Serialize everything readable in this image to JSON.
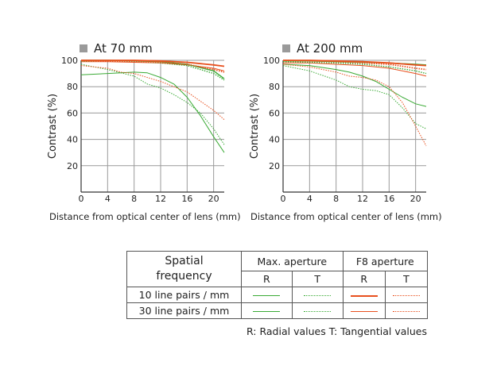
{
  "colors": {
    "max_aperture": "#3aaa35",
    "f8_aperture": "#e8501e",
    "grid": "#9a9a9a",
    "axis": "#333333"
  },
  "chart_data": [
    {
      "type": "line",
      "title": "At 70 mm",
      "xlabel": "Distance from optical center of lens (mm)",
      "ylabel": "Contrast (%)",
      "xlim": [
        0,
        21.6
      ],
      "ylim": [
        0,
        100
      ],
      "xticks": [
        0,
        4,
        8,
        12,
        16,
        20
      ],
      "yticks": [
        20,
        40,
        60,
        80,
        100
      ],
      "xtick_labels": [
        "0",
        "4",
        "8",
        "12",
        "16",
        "20"
      ],
      "ytick_labels": [
        "20",
        "40",
        "60",
        "80",
        "100"
      ],
      "grid": true,
      "series": [
        {
          "aperture": "F8",
          "frequency": "10 line pairs / mm",
          "component": "R",
          "x": [
            0,
            4,
            8,
            12,
            16,
            20,
            21.6
          ],
          "y": [
            100,
            100,
            100,
            99.5,
            98.5,
            96.5,
            95.5
          ]
        },
        {
          "aperture": "F8",
          "frequency": "10 line pairs / mm",
          "component": "T",
          "x": [
            0,
            4,
            8,
            12,
            16,
            20,
            21.6
          ],
          "y": [
            100,
            99.5,
            99,
            98.5,
            97,
            93,
            91
          ]
        },
        {
          "aperture": "F8",
          "frequency": "30 line pairs / mm",
          "component": "R",
          "x": [
            0,
            4,
            8,
            12,
            16,
            20,
            21.6
          ],
          "y": [
            99,
            99,
            98.5,
            98,
            96.5,
            94,
            92
          ]
        },
        {
          "aperture": "F8",
          "frequency": "30 line pairs / mm",
          "component": "T",
          "x": [
            0,
            4,
            6,
            8,
            12,
            16,
            20,
            21.6
          ],
          "y": [
            96,
            94,
            91,
            90,
            84,
            76,
            62,
            55
          ]
        },
        {
          "aperture": "Max.",
          "frequency": "10 line pairs / mm",
          "component": "R",
          "x": [
            0,
            4,
            8,
            12,
            16,
            20,
            21.6
          ],
          "y": [
            100,
            100,
            99.5,
            99,
            97,
            92,
            86
          ]
        },
        {
          "aperture": "Max.",
          "frequency": "10 line pairs / mm",
          "component": "T",
          "x": [
            0,
            4,
            8,
            12,
            16,
            20,
            21.6
          ],
          "y": [
            99.5,
            99.5,
            99,
            98,
            96,
            90,
            85
          ]
        },
        {
          "aperture": "Max.",
          "frequency": "30 line pairs / mm",
          "component": "R",
          "x": [
            0,
            4,
            8,
            10,
            12,
            14,
            16,
            18,
            20,
            21.6
          ],
          "y": [
            89,
            90,
            91,
            90.5,
            87,
            82,
            72,
            58,
            42,
            30
          ]
        },
        {
          "aperture": "Max.",
          "frequency": "30 line pairs / mm",
          "component": "T",
          "x": [
            0,
            4,
            8,
            10,
            12,
            14,
            16,
            18,
            20,
            21.6
          ],
          "y": [
            97,
            93,
            88,
            82,
            79,
            74,
            68,
            60,
            48,
            36
          ]
        }
      ]
    },
    {
      "type": "line",
      "title": "At 200 mm",
      "xlabel": "Distance from optical center of lens (mm)",
      "ylabel": "Contrast (%)",
      "xlim": [
        0,
        21.6
      ],
      "ylim": [
        0,
        100
      ],
      "xticks": [
        0,
        4,
        8,
        12,
        16,
        20
      ],
      "yticks": [
        20,
        40,
        60,
        80,
        100
      ],
      "xtick_labels": [
        "0",
        "4",
        "8",
        "12",
        "16",
        "20"
      ],
      "ytick_labels": [
        "20",
        "40",
        "60",
        "80",
        "100"
      ],
      "grid": true,
      "series": [
        {
          "aperture": "F8",
          "frequency": "10 line pairs / mm",
          "component": "R",
          "x": [
            0,
            4,
            8,
            12,
            16,
            20,
            21.6
          ],
          "y": [
            100,
            100,
            99.5,
            99,
            98,
            96.5,
            96
          ]
        },
        {
          "aperture": "F8",
          "frequency": "10 line pairs / mm",
          "component": "T",
          "x": [
            0,
            4,
            8,
            12,
            16,
            20,
            21.6
          ],
          "y": [
            100,
            99.5,
            99,
            98,
            97,
            94,
            93
          ]
        },
        {
          "aperture": "F8",
          "frequency": "30 line pairs / mm",
          "component": "R",
          "x": [
            0,
            4,
            8,
            12,
            16,
            20,
            21.6
          ],
          "y": [
            98,
            98,
            97,
            96,
            94,
            90,
            88
          ]
        },
        {
          "aperture": "F8",
          "frequency": "30 line pairs / mm",
          "component": "T",
          "x": [
            0,
            4,
            8,
            10,
            12,
            14,
            16,
            18,
            20,
            21.6
          ],
          "y": [
            97,
            95,
            91,
            88,
            87,
            85,
            80,
            68,
            50,
            35
          ]
        },
        {
          "aperture": "Max.",
          "frequency": "10 line pairs / mm",
          "component": "R",
          "x": [
            0,
            4,
            8,
            12,
            16,
            20,
            21.6
          ],
          "y": [
            99.5,
            99.5,
            99,
            98.5,
            98,
            97,
            96.5
          ]
        },
        {
          "aperture": "Max.",
          "frequency": "10 line pairs / mm",
          "component": "T",
          "x": [
            0,
            4,
            8,
            12,
            16,
            20,
            21.6
          ],
          "y": [
            99,
            98.5,
            98,
            97,
            95,
            92,
            90
          ]
        },
        {
          "aperture": "Max.",
          "frequency": "30 line pairs / mm",
          "component": "R",
          "x": [
            0,
            4,
            8,
            10,
            12,
            14,
            16,
            18,
            20,
            21.6
          ],
          "y": [
            97,
            96,
            93,
            91,
            88,
            84,
            78,
            72,
            67,
            65
          ]
        },
        {
          "aperture": "Max.",
          "frequency": "30 line pairs / mm",
          "component": "T",
          "x": [
            0,
            4,
            8,
            10,
            12,
            14,
            16,
            18,
            20,
            21.6
          ],
          "y": [
            96,
            92,
            85,
            80,
            78,
            77,
            74,
            64,
            52,
            48
          ]
        }
      ]
    }
  ],
  "legend": {
    "header_spatial": "Spatial frequency",
    "header_max": "Max. aperture",
    "header_f8": "F8 aperture",
    "col_r": "R",
    "col_t": "T",
    "row_10": "10 line pairs / mm",
    "row_30": "30 line pairs / mm"
  },
  "note": "R: Radial values  T: Tangential values"
}
